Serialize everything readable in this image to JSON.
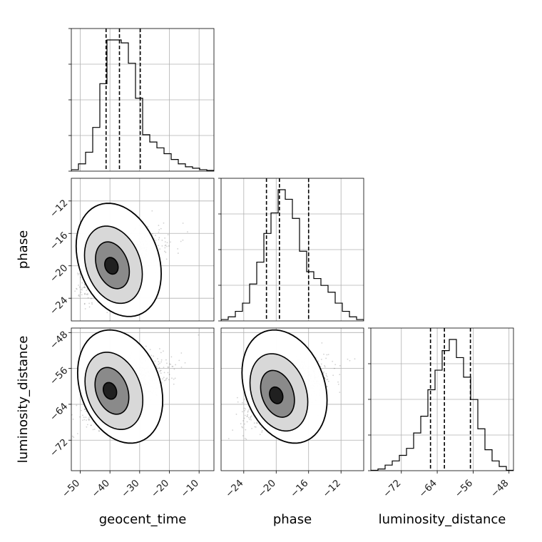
{
  "chart_data": {
    "type": "corner",
    "parameters": [
      "geocent_time",
      "phase",
      "luminosity_distance"
    ],
    "axis_labels": {
      "geocent_time": "geocent_time",
      "phase": "phase",
      "luminosity_distance": "luminosity_distance"
    },
    "ranges": {
      "geocent_time": [
        -53,
        -5
      ],
      "phase": [
        -26.8,
        -9.2
      ],
      "luminosity_distance": [
        -78.8,
        -47.0
      ]
    },
    "ticks": {
      "geocent_time": [
        -50,
        -40,
        -30,
        -20,
        -10
      ],
      "phase": [
        -24,
        -20,
        -16,
        -12
      ],
      "luminosity_distance": [
        -72,
        -64,
        -56,
        -48
      ]
    },
    "tick_labels": {
      "geocent_time": [
        "−50",
        "−40",
        "−30",
        "−20",
        "−10"
      ],
      "phase": [
        "−24",
        "−20",
        "−16",
        "−12"
      ],
      "luminosity_distance": [
        "−72",
        "−64",
        "−56",
        "−48"
      ]
    },
    "quantiles": {
      "geocent_time": [
        -41.3,
        -36.8,
        -29.8
      ],
      "phase": [
        -21.2,
        -19.6,
        -16.0
      ],
      "luminosity_distance": [
        -65.5,
        -62.4,
        -56.6
      ]
    },
    "histograms": {
      "geocent_time": {
        "bin_edges": [
          -53,
          -50.6,
          -48.2,
          -45.8,
          -43.4,
          -41,
          -38.6,
          -36.2,
          -33.8,
          -31.4,
          -29,
          -26.6,
          -24.2,
          -21.8,
          -19.4,
          -17,
          -14.6,
          -12.2,
          -9.8,
          -7.4,
          -5
        ],
        "counts": [
          0.01,
          0.05,
          0.13,
          0.3,
          0.6,
          0.9,
          0.9,
          0.88,
          0.74,
          0.5,
          0.25,
          0.2,
          0.16,
          0.12,
          0.08,
          0.05,
          0.03,
          0.02,
          0.01,
          0.005
        ]
      },
      "phase": {
        "bin_edges": [
          -26.8,
          -25.92,
          -25.04,
          -24.16,
          -23.28,
          -22.4,
          -21.52,
          -20.64,
          -19.76,
          -18.88,
          -18,
          -17.12,
          -16.24,
          -15.36,
          -14.48,
          -13.6,
          -12.72,
          -11.84,
          -10.96,
          -10.08,
          -9.2
        ],
        "counts": [
          0.01,
          0.03,
          0.07,
          0.13,
          0.27,
          0.43,
          0.64,
          0.79,
          0.96,
          0.89,
          0.75,
          0.51,
          0.36,
          0.31,
          0.26,
          0.21,
          0.13,
          0.07,
          0.03,
          0.01
        ]
      },
      "luminosity_distance": {
        "bin_edges": [
          -78.8,
          -77.21,
          -75.62,
          -74.03,
          -72.44,
          -70.85,
          -69.26,
          -67.67,
          -66.08,
          -64.49,
          -62.9,
          -61.31,
          -59.72,
          -58.13,
          -56.54,
          -54.95,
          -53.36,
          -51.77,
          -50.18,
          -48.59,
          -47.0
        ],
        "counts": [
          0.003,
          0.012,
          0.04,
          0.07,
          0.11,
          0.16,
          0.27,
          0.39,
          0.58,
          0.72,
          0.86,
          0.94,
          0.81,
          0.67,
          0.51,
          0.3,
          0.15,
          0.07,
          0.03,
          0.003
        ]
      }
    },
    "density_2d": {
      "phase_vs_geocent_time": {
        "mean": [
          -38.5,
          -19.8
        ],
        "peak": [
          -39.5,
          -20.0
        ]
      },
      "luminosity_distance_vs_geocent_time": {
        "mean": [
          -38.0,
          -61.0
        ],
        "peak": [
          -40.0,
          -61.0
        ]
      },
      "luminosity_distance_vs_phase": {
        "mean": [
          -19.5,
          -61.0
        ],
        "peak": [
          -20.0,
          -62.0
        ]
      }
    },
    "grid": true
  }
}
